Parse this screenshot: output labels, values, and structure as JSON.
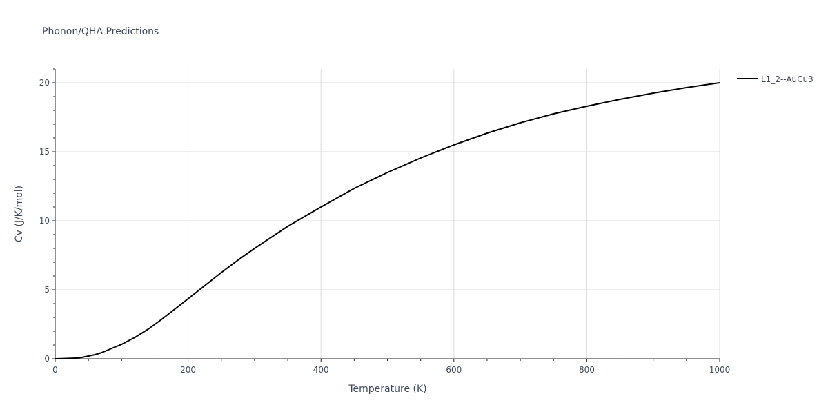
{
  "chart_data": {
    "type": "line",
    "title": "Phonon/QHA Predictions",
    "xlabel": "Temperature (K)",
    "ylabel": "Cv (J/K/mol)",
    "xlim": [
      0,
      1000
    ],
    "ylim": [
      0,
      21
    ],
    "xticks": [
      0,
      200,
      400,
      600,
      800,
      1000
    ],
    "yticks": [
      0,
      5,
      10,
      15,
      20
    ],
    "grid": true,
    "legend_position": "top-right outside",
    "series": [
      {
        "name": "L1_2--AuCu3",
        "color": "#000000",
        "x": [
          0,
          10,
          20,
          30,
          40,
          50,
          60,
          70,
          80,
          90,
          100,
          120,
          140,
          160,
          180,
          200,
          225,
          250,
          275,
          300,
          350,
          400,
          450,
          500,
          550,
          600,
          650,
          700,
          750,
          800,
          850,
          900,
          950,
          1000
        ],
        "y": [
          0,
          0.01,
          0.03,
          0.05,
          0.1,
          0.2,
          0.3,
          0.45,
          0.65,
          0.85,
          1.05,
          1.55,
          2.15,
          2.85,
          3.6,
          4.35,
          5.3,
          6.25,
          7.15,
          8.0,
          9.6,
          11.0,
          12.35,
          13.5,
          14.55,
          15.5,
          16.35,
          17.1,
          17.75,
          18.3,
          18.8,
          19.25,
          19.65,
          20.0
        ]
      }
    ]
  }
}
